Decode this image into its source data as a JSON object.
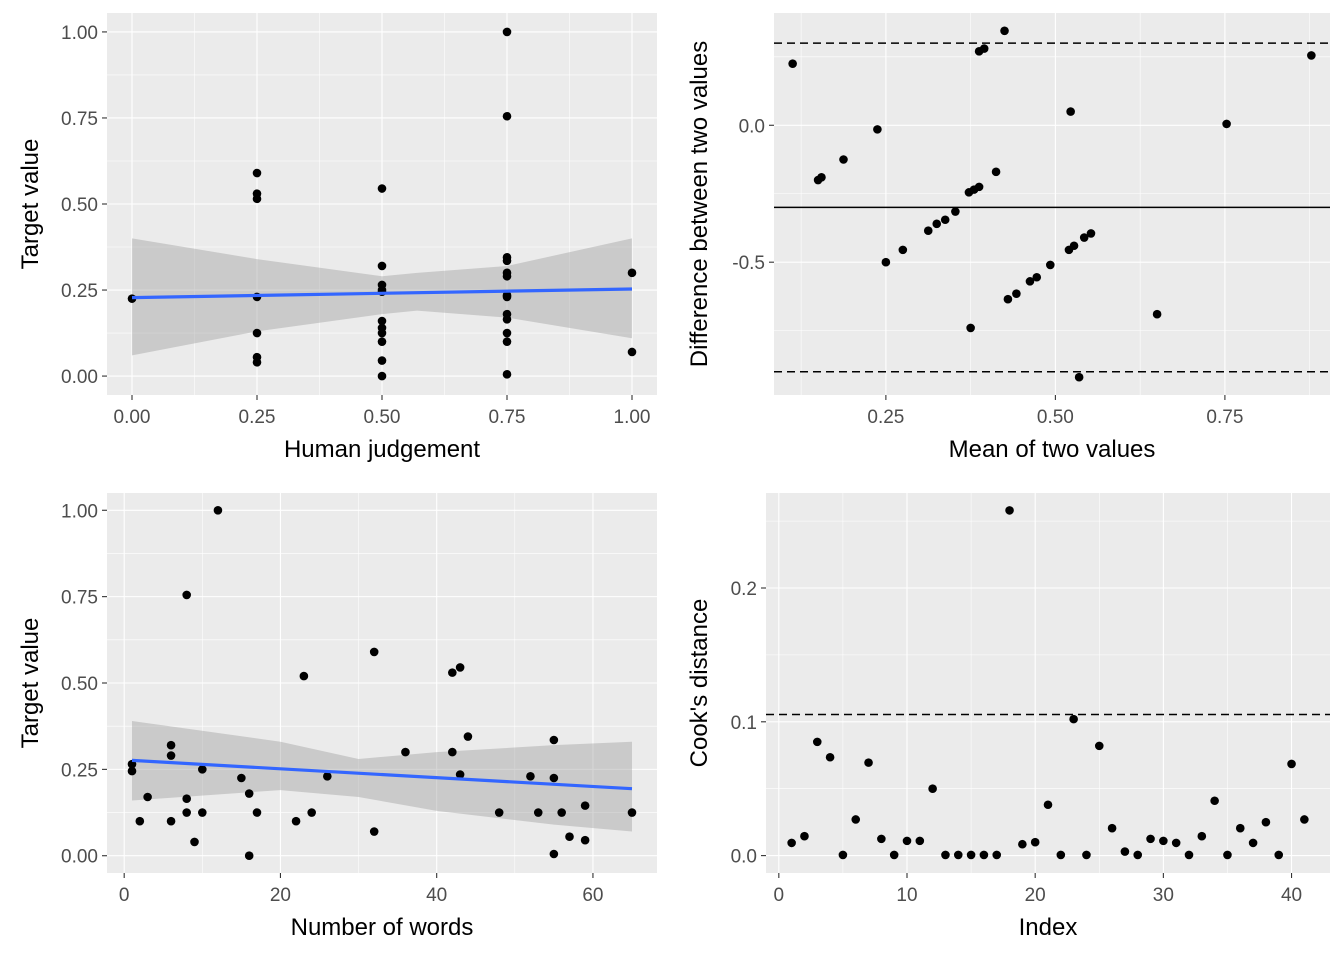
{
  "chart_data": [
    {
      "id": "p1",
      "type": "scatter",
      "title": "",
      "xlabel": "Human judgement",
      "ylabel": "Target value",
      "xlim": [
        -0.05,
        1.05
      ],
      "ylim": [
        -0.055,
        1.055
      ],
      "x_ticks": [
        0,
        0.25,
        0.5,
        0.75,
        1
      ],
      "x_tick_labels": [
        "0.00",
        "0.25",
        "0.50",
        "0.75",
        "1.00"
      ],
      "y_ticks": [
        0,
        0.25,
        0.5,
        0.75,
        1
      ],
      "y_tick_labels": [
        "0.00",
        "0.25",
        "0.50",
        "0.75",
        "1.00"
      ],
      "grid": true,
      "points": [
        [
          0,
          0.225
        ],
        [
          0.25,
          0.59
        ],
        [
          0.25,
          0.53
        ],
        [
          0.25,
          0.515
        ],
        [
          0.25,
          0.23
        ],
        [
          0.25,
          0.125
        ],
        [
          0.25,
          0.055
        ],
        [
          0.25,
          0.04
        ],
        [
          0.5,
          0.545
        ],
        [
          0.5,
          0.32
        ],
        [
          0.5,
          0.265
        ],
        [
          0.5,
          0.25
        ],
        [
          0.5,
          0.245
        ],
        [
          0.5,
          0.16
        ],
        [
          0.5,
          0.14
        ],
        [
          0.5,
          0.125
        ],
        [
          0.5,
          0.1
        ],
        [
          0.5,
          0.045
        ],
        [
          0.5,
          0.0
        ],
        [
          0.75,
          1.0
        ],
        [
          0.75,
          0.755
        ],
        [
          0.75,
          0.345
        ],
        [
          0.75,
          0.335
        ],
        [
          0.75,
          0.3
        ],
        [
          0.75,
          0.29
        ],
        [
          0.75,
          0.235
        ],
        [
          0.75,
          0.23
        ],
        [
          0.75,
          0.18
        ],
        [
          0.75,
          0.165
        ],
        [
          0.75,
          0.125
        ],
        [
          0.75,
          0.1
        ],
        [
          0.75,
          0.005
        ],
        [
          1,
          0.3
        ],
        [
          1,
          0.07
        ]
      ],
      "fit": {
        "method": "lm",
        "x": [
          0,
          1
        ],
        "y": [
          0.228,
          0.253
        ],
        "color": "#3366ff"
      },
      "ci_band": {
        "x": [
          0,
          0.25,
          0.5,
          0.57,
          0.75,
          1
        ],
        "lower": [
          0.06,
          0.13,
          0.18,
          0.19,
          0.17,
          0.11
        ],
        "upper": [
          0.4,
          0.34,
          0.29,
          0.3,
          0.32,
          0.4
        ]
      }
    },
    {
      "id": "p2",
      "type": "scatter",
      "title": "",
      "xlabel": "Mean of two values",
      "ylabel": "Difference between two values",
      "xlim": [
        0.085,
        0.905
      ],
      "ylim": [
        -0.985,
        0.41
      ],
      "x_ticks": [
        0.25,
        0.5,
        0.75
      ],
      "x_tick_labels": [
        "0.25",
        "0.50",
        "0.75"
      ],
      "y_ticks": [
        0,
        -0.5
      ],
      "y_tick_labels": [
        "0.0",
        "-0.5"
      ],
      "grid": true,
      "points": [
        [
          0.1125,
          0.225
        ],
        [
          0.15,
          -0.2
        ],
        [
          0.155,
          -0.19
        ],
        [
          0.1875,
          -0.125
        ],
        [
          0.2375,
          -0.015
        ],
        [
          0.25,
          -0.5
        ],
        [
          0.275,
          -0.455
        ],
        [
          0.3125,
          -0.385
        ],
        [
          0.325,
          -0.36
        ],
        [
          0.3375,
          -0.345
        ],
        [
          0.3525,
          -0.315
        ],
        [
          0.3725,
          -0.245
        ],
        [
          0.38,
          -0.235
        ],
        [
          0.3875,
          -0.225
        ],
        [
          0.3875,
          0.27
        ],
        [
          0.395,
          0.28
        ],
        [
          0.375,
          -0.74
        ],
        [
          0.4125,
          -0.17
        ],
        [
          0.425,
          0.345
        ],
        [
          0.43,
          -0.635
        ],
        [
          0.4425,
          -0.615
        ],
        [
          0.4625,
          -0.57
        ],
        [
          0.4725,
          -0.555
        ],
        [
          0.4925,
          -0.51
        ],
        [
          0.52,
          -0.455
        ],
        [
          0.5275,
          -0.44
        ],
        [
          0.5225,
          0.05
        ],
        [
          0.535,
          -0.92
        ],
        [
          0.5425,
          -0.41
        ],
        [
          0.5525,
          -0.395
        ],
        [
          0.65,
          -0.69
        ],
        [
          0.7525,
          0.005
        ],
        [
          0.8775,
          0.255
        ]
      ],
      "mean_line": -0.3,
      "limits_of_agreement": [
        0.3,
        -0.9
      ]
    },
    {
      "id": "p3",
      "type": "scatter",
      "title": "",
      "xlabel": "Number of words",
      "ylabel": "Target value",
      "xlim": [
        -2.2,
        68.2
      ],
      "ylim": [
        -0.05,
        1.05
      ],
      "x_ticks": [
        0,
        20,
        40,
        60
      ],
      "x_tick_labels": [
        "0",
        "20",
        "40",
        "60"
      ],
      "y_ticks": [
        0,
        0.25,
        0.5,
        0.75,
        1
      ],
      "y_tick_labels": [
        "0.00",
        "0.25",
        "0.50",
        "0.75",
        "1.00"
      ],
      "grid": true,
      "points": [
        [
          1,
          0.265
        ],
        [
          1,
          0.245
        ],
        [
          2,
          0.1
        ],
        [
          3,
          0.17
        ],
        [
          6,
          0.32
        ],
        [
          6,
          0.29
        ],
        [
          6,
          0.1
        ],
        [
          8,
          0.755
        ],
        [
          8,
          0.165
        ],
        [
          8,
          0.125
        ],
        [
          9,
          0.04
        ],
        [
          10,
          0.25
        ],
        [
          10,
          0.125
        ],
        [
          12,
          1.0
        ],
        [
          15,
          0.225
        ],
        [
          16,
          0.18
        ],
        [
          16,
          0.0
        ],
        [
          17,
          0.125
        ],
        [
          22,
          0.1
        ],
        [
          23,
          0.52
        ],
        [
          24,
          0.125
        ],
        [
          26,
          0.23
        ],
        [
          32,
          0.59
        ],
        [
          32,
          0.07
        ],
        [
          36,
          0.3
        ],
        [
          42,
          0.53
        ],
        [
          42,
          0.3
        ],
        [
          43,
          0.545
        ],
        [
          43,
          0.235
        ],
        [
          44,
          0.345
        ],
        [
          48,
          0.125
        ],
        [
          52,
          0.23
        ],
        [
          53,
          0.125
        ],
        [
          55,
          0.335
        ],
        [
          55,
          0.225
        ],
        [
          55,
          0.005
        ],
        [
          56,
          0.125
        ],
        [
          57,
          0.055
        ],
        [
          59,
          0.145
        ],
        [
          59,
          0.045
        ],
        [
          65,
          0.125
        ]
      ],
      "fit": {
        "method": "lm",
        "x": [
          1,
          65
        ],
        "y": [
          0.276,
          0.194
        ],
        "color": "#3366ff"
      },
      "ci_band": {
        "x": [
          1,
          20,
          30,
          40,
          55,
          65
        ],
        "lower": [
          0.16,
          0.19,
          0.17,
          0.13,
          0.09,
          0.07
        ],
        "upper": [
          0.39,
          0.33,
          0.28,
          0.3,
          0.32,
          0.33
        ]
      }
    },
    {
      "id": "p4",
      "type": "scatter",
      "title": "",
      "xlabel": "Index",
      "ylabel": "Cook's distance",
      "xlim": [
        -1,
        43
      ],
      "ylim": [
        -0.013,
        0.271
      ],
      "x_ticks": [
        0,
        10,
        20,
        30,
        40
      ],
      "x_tick_labels": [
        "0",
        "10",
        "20",
        "30",
        "40"
      ],
      "y_ticks": [
        0,
        0.1,
        0.2
      ],
      "y_tick_labels": [
        "0.0",
        "0.1",
        "0.2"
      ],
      "grid": true,
      "points": [
        [
          1,
          0.0095
        ],
        [
          2,
          0.0145
        ],
        [
          3,
          0.085
        ],
        [
          4,
          0.0735
        ],
        [
          5,
          0.0005
        ],
        [
          6,
          0.027
        ],
        [
          7,
          0.0695
        ],
        [
          8,
          0.0125
        ],
        [
          9,
          0.0005
        ],
        [
          10,
          0.011
        ],
        [
          11,
          0.011
        ],
        [
          12,
          0.05
        ],
        [
          13,
          0.0005
        ],
        [
          14,
          0.0005
        ],
        [
          15,
          0.0005
        ],
        [
          16,
          0.0005
        ],
        [
          17,
          0.0005
        ],
        [
          18,
          0.258
        ],
        [
          19,
          0.0085
        ],
        [
          20,
          0.01
        ],
        [
          21,
          0.038
        ],
        [
          22,
          0.0005
        ],
        [
          23,
          0.102
        ],
        [
          24,
          0.0005
        ],
        [
          25,
          0.082
        ],
        [
          26,
          0.0205
        ],
        [
          27,
          0.003
        ],
        [
          28,
          0.0005
        ],
        [
          29,
          0.0125
        ],
        [
          30,
          0.011
        ],
        [
          31,
          0.0095
        ],
        [
          32,
          0.0005
        ],
        [
          33,
          0.0145
        ],
        [
          34,
          0.041
        ],
        [
          35,
          0.0005
        ],
        [
          36,
          0.0205
        ],
        [
          37,
          0.0095
        ],
        [
          38,
          0.025
        ],
        [
          39,
          0.0005
        ],
        [
          40,
          0.0685
        ],
        [
          41,
          0.027
        ]
      ],
      "threshold": 0.1055
    }
  ]
}
